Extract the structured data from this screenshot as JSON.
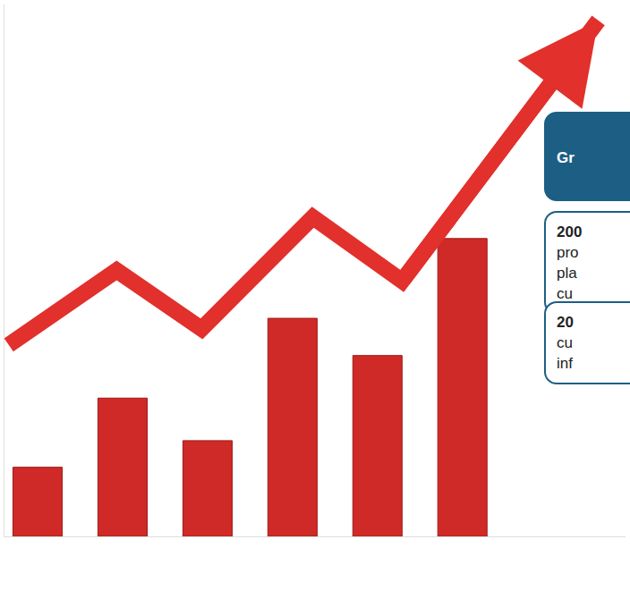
{
  "chart_data": {
    "type": "bar",
    "categories": [
      null,
      null,
      null,
      null,
      null,
      null
    ],
    "xlim": [
      -0.39,
      6.92
    ],
    "ylim": [
      0,
      100
    ],
    "grid": false,
    "tick_labels": false,
    "series": [
      {
        "type": "bar",
        "color": "#cf2a27",
        "values": [
          13,
          26,
          18,
          41,
          34,
          56
        ]
      },
      {
        "type": "line",
        "color": "#e2302c",
        "marker": "arrow",
        "x": [
          -0.34,
          0.93,
          1.93,
          3.24,
          4.29,
          6.6
        ],
        "values": [
          36,
          50,
          39,
          60,
          48,
          97
        ]
      }
    ]
  },
  "text_boxes": [
    {
      "style": "filled",
      "lines": [
        "Gr"
      ]
    },
    {
      "style": "outlined",
      "lines": [
        "200",
        "pro",
        "pla",
        "cu"
      ]
    },
    {
      "style": "outlined",
      "lines": [
        "20",
        "cu",
        "inf"
      ]
    }
  ]
}
